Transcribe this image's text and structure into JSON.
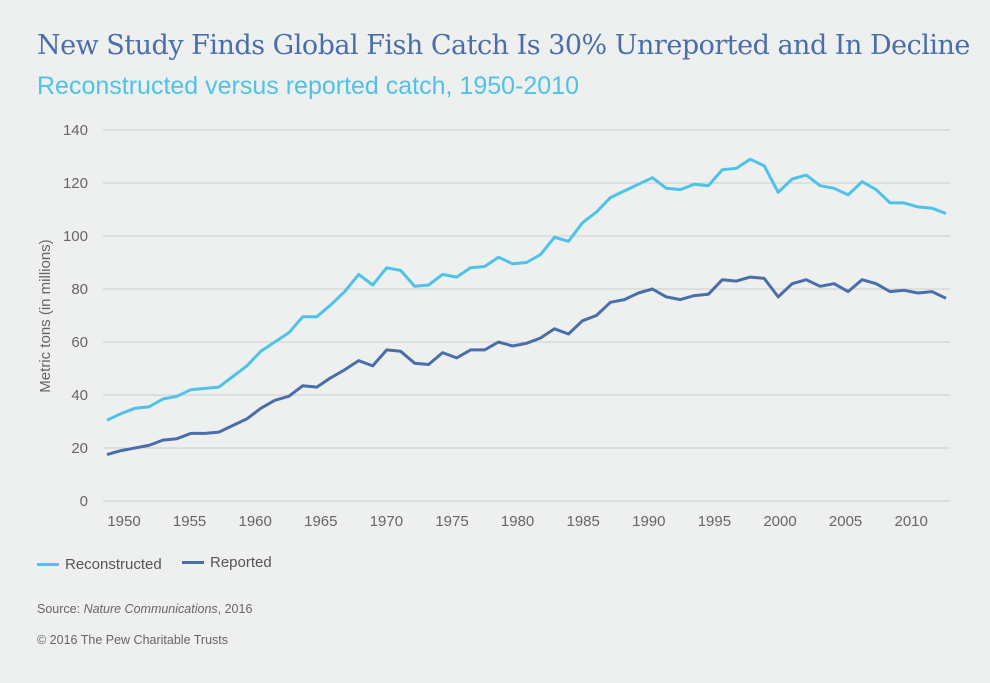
{
  "title": "New Study Finds Global Fish Catch Is 30% Unreported and In Decline",
  "subtitle": "Reconstructed versus reported catch, 1950-2010",
  "source": {
    "label": "Source: ",
    "publication": "Nature Communications",
    "year": ", 2016"
  },
  "copyright": "© 2016 The Pew Charitable Trusts",
  "colors": {
    "reconstructed": "#4ec2e8",
    "reported": "#4a6ea9",
    "grid": "#cccccc"
  },
  "chart_data": {
    "type": "line",
    "title": "New Study Finds Global Fish Catch Is 30% Unreported and In Decline",
    "ylabel": "Metric tons (in millions)",
    "xlabel": "",
    "ylim": [
      0,
      140
    ],
    "yticks": [
      0,
      20,
      40,
      60,
      80,
      100,
      120,
      140
    ],
    "xticks": [
      1950,
      1955,
      1960,
      1965,
      1970,
      1975,
      1980,
      1985,
      1990,
      1995,
      2000,
      2005,
      2010
    ],
    "grid": true,
    "legend": "bottom-left",
    "x_start": 1950,
    "series": [
      {
        "name": "Reconstructed",
        "values": [
          30.5,
          33,
          35,
          35.5,
          38.5,
          39.5,
          42,
          42.5,
          43,
          47,
          51,
          56.5,
          60,
          63.5,
          69.5,
          69.5,
          74,
          79,
          85.5,
          81.5,
          88,
          87,
          81,
          81.5,
          85.5,
          84.5,
          88,
          88.5,
          92,
          89.5,
          90,
          93,
          99.5,
          98,
          105,
          109,
          114.5,
          117,
          119.5,
          122,
          118,
          117.5,
          119.5,
          119,
          125,
          125.5,
          129,
          126.5,
          116.5,
          121.5,
          123,
          119,
          118,
          115.5,
          120.5,
          117.5,
          112.5,
          112.5,
          111,
          110.5,
          108.5
        ]
      },
      {
        "name": "Reported",
        "values": [
          17.5,
          19,
          20,
          21,
          23,
          23.5,
          25.5,
          25.5,
          26,
          28.5,
          31,
          35,
          38,
          39.5,
          43.5,
          43,
          46.5,
          49.5,
          53,
          51,
          57,
          56.5,
          52,
          51.5,
          56,
          54,
          57,
          57,
          60,
          58.5,
          59.5,
          61.5,
          65,
          63,
          68,
          70,
          75,
          76,
          78.5,
          80,
          77,
          76,
          77.5,
          78,
          83.5,
          83,
          84.5,
          84,
          77,
          82,
          83.5,
          81,
          82,
          79,
          83.5,
          82,
          79,
          79.5,
          78.5,
          79,
          76.5
        ]
      }
    ]
  }
}
